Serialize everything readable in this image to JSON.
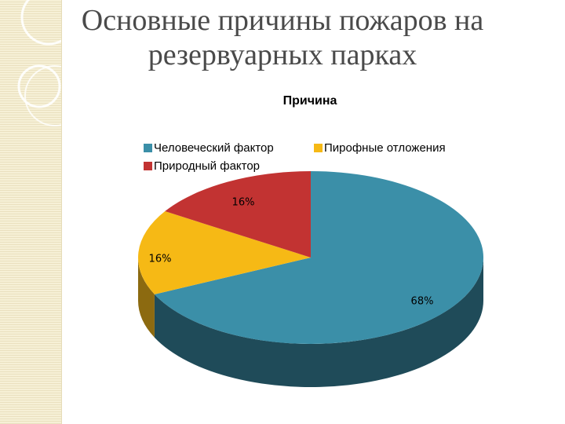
{
  "slide": {
    "title_line1": "Основные причины пожаров на",
    "title_line2": "резервуарных парках"
  },
  "chart_data": {
    "type": "pie",
    "title": "Причина",
    "style": "3d",
    "legend_position": "top",
    "slices": [
      {
        "name": "Человеческий фактор",
        "value": 68,
        "label": "68%",
        "color": "#3b8fa8",
        "dark": "#1f4b59"
      },
      {
        "name": "Пирофные отложения",
        "value": 16,
        "label": "16%",
        "color": "#f6b915",
        "dark": "#8c6a10"
      },
      {
        "name": "Природный фактор",
        "value": 16,
        "label": "16%",
        "color": "#c23332",
        "dark": "#6e1d1c"
      }
    ]
  }
}
